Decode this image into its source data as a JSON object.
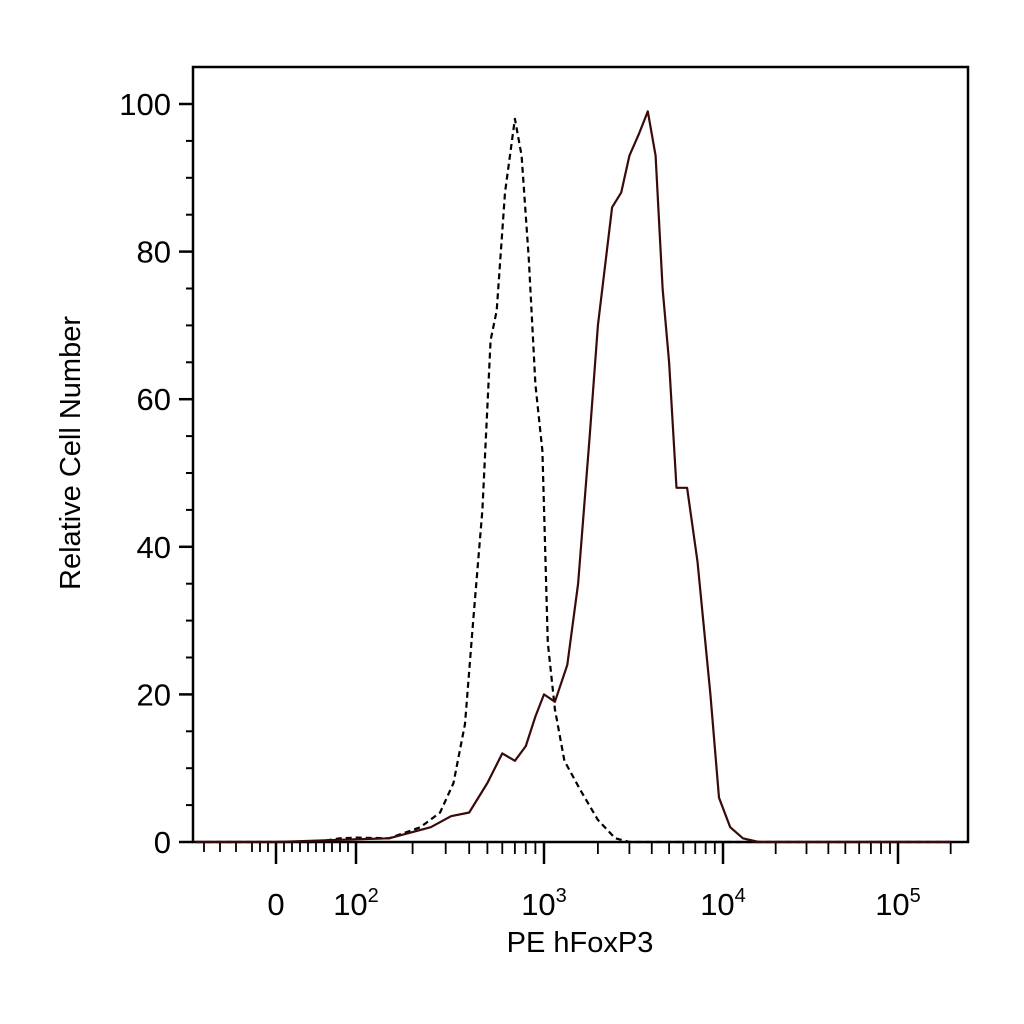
{
  "chart_data": {
    "type": "line",
    "xlabel": "PE hFoxP3",
    "ylabel": "Relative Cell Number",
    "x_scale": "biexponential",
    "xlim": [
      -100,
      200000
    ],
    "ylim": [
      0,
      100
    ],
    "y_ticks": [
      {
        "value": 0,
        "label": "0"
      },
      {
        "value": 20,
        "label": "20"
      },
      {
        "value": 40,
        "label": "40"
      },
      {
        "value": 60,
        "label": "60"
      },
      {
        "value": 80,
        "label": "80"
      },
      {
        "value": 100,
        "label": "100"
      }
    ],
    "x_ticks": [
      {
        "value": 0,
        "base": "0",
        "exp": ""
      },
      {
        "value": 100,
        "base": "10",
        "exp": "2"
      },
      {
        "value": 1000,
        "base": "10",
        "exp": "3"
      },
      {
        "value": 10000,
        "base": "10",
        "exp": "4"
      },
      {
        "value": 100000,
        "base": "10",
        "exp": "5"
      }
    ],
    "grid": false,
    "legend": "none",
    "series": [
      {
        "style": "dashed",
        "color": "#000000",
        "points": [
          [
            -100,
            0
          ],
          [
            0,
            0
          ],
          [
            50,
            0
          ],
          [
            80,
            0.5
          ],
          [
            100,
            0.6
          ],
          [
            150,
            0.5
          ],
          [
            220,
            2
          ],
          [
            280,
            4
          ],
          [
            330,
            8
          ],
          [
            380,
            16
          ],
          [
            420,
            30
          ],
          [
            470,
            45
          ],
          [
            520,
            68
          ],
          [
            560,
            72
          ],
          [
            620,
            88
          ],
          [
            700,
            98
          ],
          [
            760,
            93
          ],
          [
            830,
            79
          ],
          [
            900,
            62
          ],
          [
            980,
            53
          ],
          [
            1050,
            27
          ],
          [
            1150,
            18
          ],
          [
            1300,
            11
          ],
          [
            1600,
            7
          ],
          [
            2000,
            3
          ],
          [
            2500,
            0.5
          ],
          [
            3000,
            0
          ],
          [
            5000,
            0
          ],
          [
            200000,
            0
          ]
        ]
      },
      {
        "style": "solid",
        "color": "#3a0a0a",
        "points": [
          [
            -100,
            0
          ],
          [
            0,
            0
          ],
          [
            80,
            0.3
          ],
          [
            150,
            0.5
          ],
          [
            250,
            2
          ],
          [
            320,
            3.5
          ],
          [
            400,
            4
          ],
          [
            500,
            8
          ],
          [
            600,
            12
          ],
          [
            700,
            11
          ],
          [
            800,
            13
          ],
          [
            900,
            17
          ],
          [
            1000,
            20
          ],
          [
            1150,
            19
          ],
          [
            1350,
            24
          ],
          [
            1550,
            35
          ],
          [
            1800,
            55
          ],
          [
            2000,
            70
          ],
          [
            2400,
            86
          ],
          [
            2700,
            88
          ],
          [
            3000,
            93
          ],
          [
            3400,
            96
          ],
          [
            3800,
            99
          ],
          [
            4200,
            93
          ],
          [
            4600,
            75
          ],
          [
            5000,
            65
          ],
          [
            5500,
            48
          ],
          [
            6300,
            48
          ],
          [
            7200,
            38
          ],
          [
            8500,
            20
          ],
          [
            9500,
            6
          ],
          [
            11000,
            2
          ],
          [
            13000,
            0.5
          ],
          [
            16000,
            0
          ],
          [
            200000,
            0
          ]
        ]
      }
    ]
  }
}
